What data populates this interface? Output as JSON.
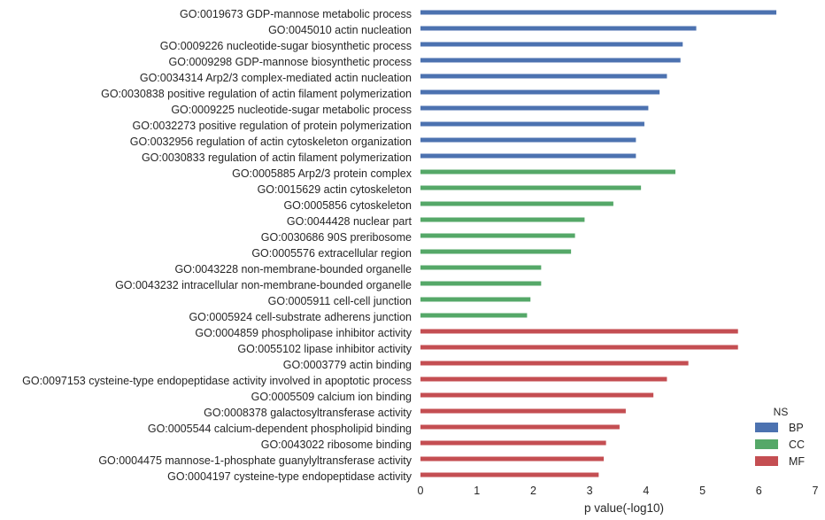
{
  "chart_data": {
    "type": "bar",
    "orientation": "horizontal",
    "xlabel": "p value(-log10)",
    "ylabel": "",
    "xlim": [
      0,
      7
    ],
    "xticks": [
      0,
      1,
      2,
      3,
      4,
      5,
      6,
      7
    ],
    "grid": false,
    "legend": {
      "title": "NS",
      "placement": "bottom-right",
      "entries": [
        {
          "name": "BP",
          "color": "#4c72b0"
        },
        {
          "name": "CC",
          "color": "#55a868"
        },
        {
          "name": "MF",
          "color": "#c44e52"
        }
      ]
    },
    "categories": [
      "GO:0019673 GDP-mannose metabolic process",
      "GO:0045010 actin nucleation",
      "GO:0009226 nucleotide-sugar biosynthetic process",
      "GO:0009298 GDP-mannose biosynthetic process",
      "GO:0034314 Arp2/3 complex-mediated actin nucleation",
      "GO:0030838 positive regulation of actin filament polymerization",
      "GO:0009225 nucleotide-sugar metabolic process",
      "GO:0032273 positive regulation of protein polymerization",
      "GO:0032956 regulation of actin cytoskeleton organization",
      "GO:0030833 regulation of actin filament polymerization",
      "GO:0005885 Arp2/3 protein complex",
      "GO:0015629 actin cytoskeleton",
      "GO:0005856 cytoskeleton",
      "GO:0044428 nuclear part",
      "GO:0030686 90S preribosome",
      "GO:0005576 extracellular region",
      "GO:0043228 non-membrane-bounded organelle",
      "GO:0043232 intracellular non-membrane-bounded organelle",
      "GO:0005911 cell-cell junction",
      "GO:0005924 cell-substrate adherens junction",
      "GO:0004859 phospholipase inhibitor activity",
      "GO:0055102 lipase inhibitor activity",
      "GO:0003779 actin binding",
      "GO:0097153 cysteine-type endopeptidase activity involved in apoptotic process",
      "GO:0005509 calcium ion binding",
      "GO:0008378 galactosyltransferase activity",
      "GO:0005544 calcium-dependent phospholipid binding",
      "GO:0043022 ribosome binding",
      "GO:0004475 mannose-1-phosphate guanylyltransferase activity",
      "GO:0004197 cysteine-type endopeptidase activity"
    ],
    "values": [
      6.31,
      4.89,
      4.65,
      4.61,
      4.37,
      4.24,
      4.04,
      3.97,
      3.82,
      3.82,
      4.52,
      3.91,
      3.42,
      2.91,
      2.74,
      2.67,
      2.14,
      2.14,
      1.95,
      1.89,
      5.63,
      5.63,
      4.75,
      4.37,
      4.13,
      3.64,
      3.53,
      3.29,
      3.25,
      3.16
    ],
    "groups": [
      "BP",
      "BP",
      "BP",
      "BP",
      "BP",
      "BP",
      "BP",
      "BP",
      "BP",
      "BP",
      "CC",
      "CC",
      "CC",
      "CC",
      "CC",
      "CC",
      "CC",
      "CC",
      "CC",
      "CC",
      "MF",
      "MF",
      "MF",
      "MF",
      "MF",
      "MF",
      "MF",
      "MF",
      "MF",
      "MF"
    ]
  }
}
